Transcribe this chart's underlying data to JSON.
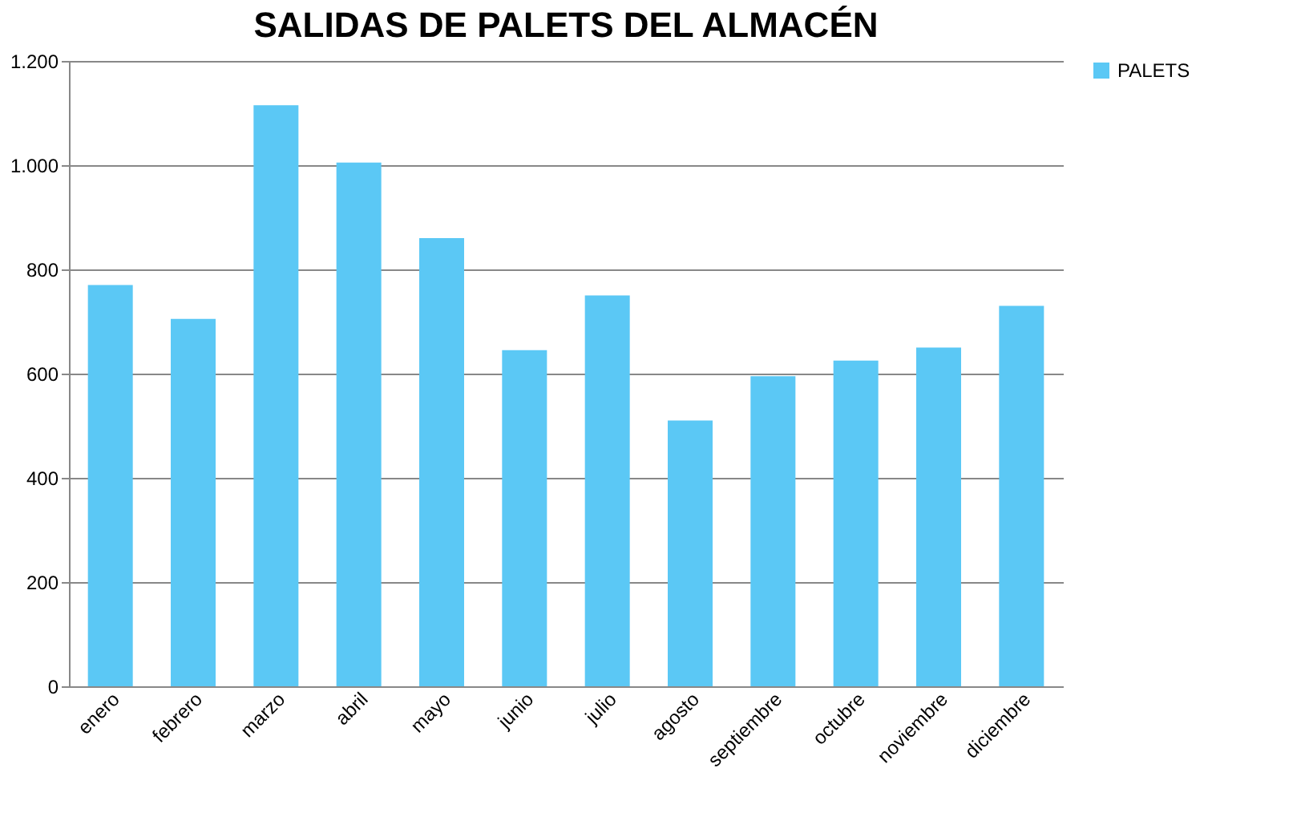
{
  "chart_data": {
    "type": "bar",
    "title": "SALIDAS DE PALETS DEL ALMACÉN",
    "categories": [
      "enero",
      "febrero",
      "marzo",
      "abril",
      "mayo",
      "junio",
      "julio",
      "agosto",
      "septiembre",
      "octubre",
      "noviembre",
      "diciembre"
    ],
    "series": [
      {
        "name": "PALETS",
        "color": "#5bc8f5",
        "values": [
          770,
          705,
          1115,
          1005,
          860,
          645,
          750,
          510,
          595,
          625,
          650,
          730
        ]
      }
    ],
    "ylim": [
      0,
      1200
    ],
    "yticks": [
      0,
      200,
      400,
      600,
      800,
      {
        "value": 1000,
        "label": "1.000"
      },
      {
        "value": 1200,
        "label": "1.200"
      }
    ],
    "grid": "y",
    "legend": "right"
  }
}
